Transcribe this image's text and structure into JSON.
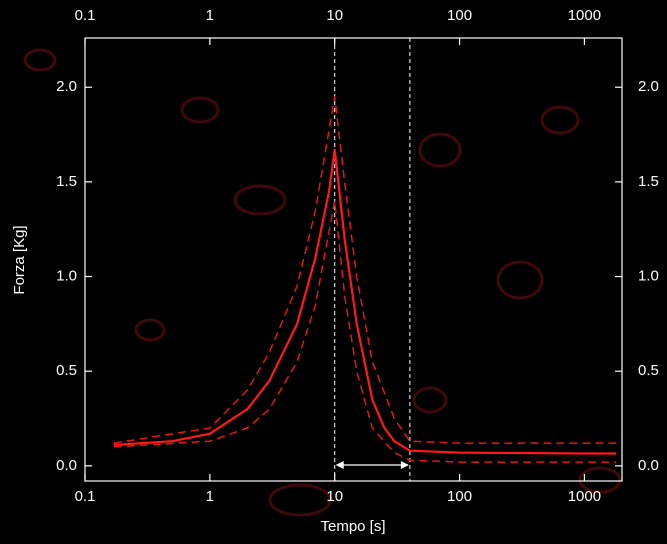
{
  "chart_data": {
    "type": "line",
    "xlabel": "Tempo [s]",
    "ylabel": "Forza [Kg]",
    "xscale": "log",
    "xlim": [
      0.1,
      2000
    ],
    "xticks": [
      0.1,
      1,
      10,
      100,
      1000
    ],
    "ylim": [
      -0.08,
      2.26
    ],
    "yticks": [
      {
        "value": 0,
        "label": "0.0"
      },
      {
        "value": 0.5,
        "label": "0.5"
      },
      {
        "value": 1,
        "label": "1.0"
      },
      {
        "value": 1.5,
        "label": "1.5"
      },
      {
        "value": 2,
        "label": "2.0"
      }
    ],
    "vlines": [
      10,
      40
    ],
    "series": [
      {
        "color": "#ff1a1a",
        "style": "solid",
        "x": [
          0.17,
          0.5,
          1,
          2,
          3,
          5,
          7,
          9,
          10,
          12,
          15,
          20,
          25,
          30,
          40,
          100,
          1000,
          1800
        ],
        "values": [
          0.11,
          0.13,
          0.17,
          0.3,
          0.45,
          0.75,
          1.1,
          1.45,
          1.67,
          1.2,
          0.75,
          0.35,
          0.2,
          0.13,
          0.08,
          0.07,
          0.065,
          0.065
        ]
      },
      {
        "color": "#e01818",
        "style": "dashed",
        "x": [
          0.17,
          1,
          2,
          3,
          5,
          7,
          10,
          12,
          15,
          20,
          30,
          40,
          100,
          1800
        ],
        "values": [
          0.12,
          0.2,
          0.4,
          0.6,
          0.95,
          1.35,
          1.95,
          1.5,
          1.0,
          0.55,
          0.25,
          0.13,
          0.12,
          0.12
        ]
      },
      {
        "color": "#e01818",
        "style": "dashed",
        "x": [
          0.17,
          1,
          2,
          3,
          5,
          7,
          10,
          12,
          15,
          20,
          30,
          40,
          100,
          1800
        ],
        "values": [
          0.1,
          0.13,
          0.2,
          0.3,
          0.55,
          0.85,
          1.4,
          0.9,
          0.5,
          0.2,
          0.07,
          0.03,
          0.02,
          0.02
        ]
      }
    ]
  }
}
